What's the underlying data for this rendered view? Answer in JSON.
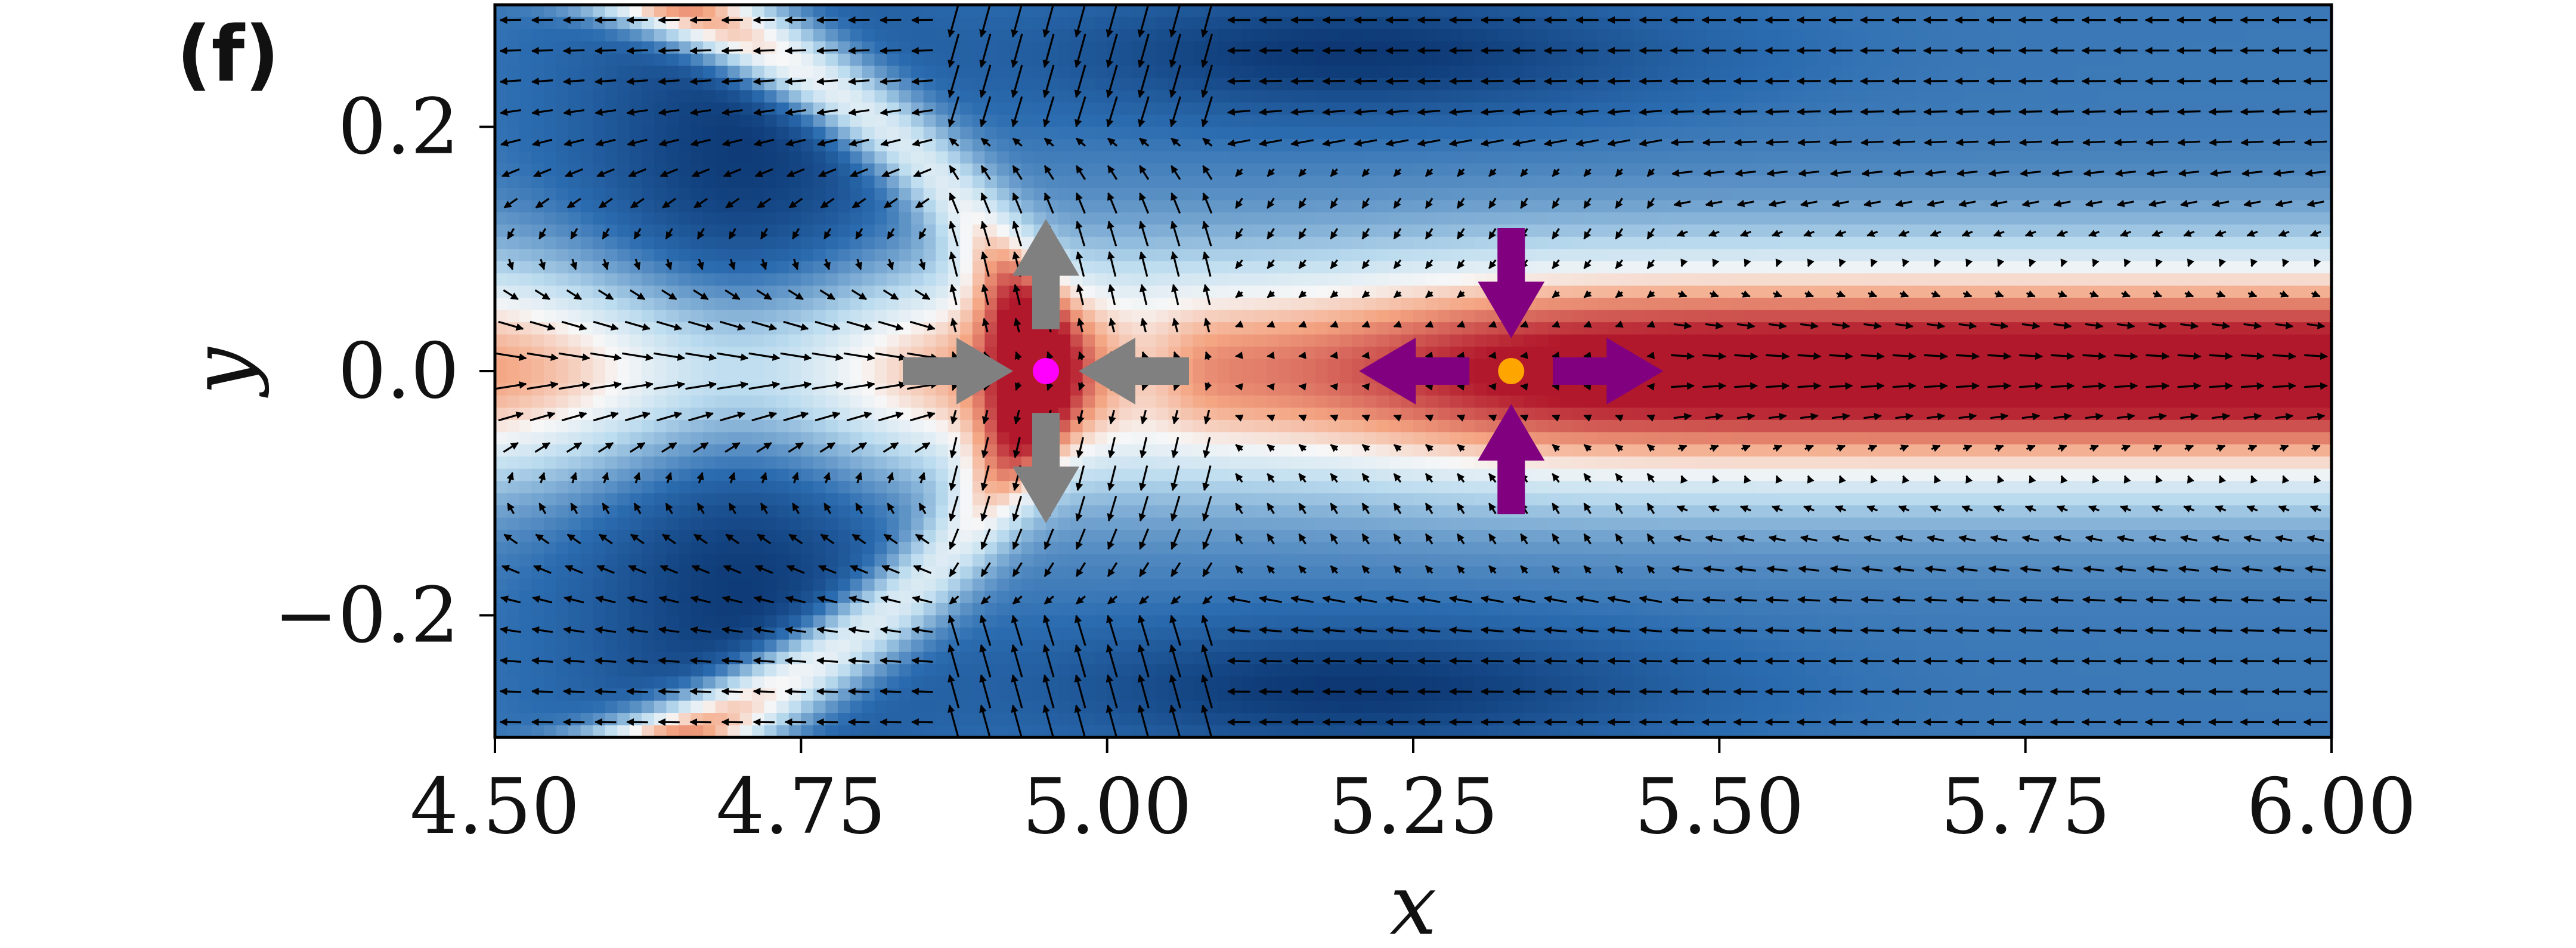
{
  "panel_label": "(f)",
  "chart_data": {
    "type": "heatmap",
    "subtype": "colormap with quiver (vector field) overlay",
    "title": "",
    "xlabel": "x",
    "ylabel": "y",
    "xlim": [
      4.5,
      6.0
    ],
    "ylim": [
      -0.3,
      0.3
    ],
    "x_ticks": [
      4.5,
      4.75,
      5.0,
      5.25,
      5.5,
      5.75,
      6.0
    ],
    "x_tick_labels": [
      "4.50",
      "4.75",
      "5.00",
      "5.25",
      "5.50",
      "5.75",
      "6.00"
    ],
    "y_ticks": [
      -0.2,
      0.0,
      0.2
    ],
    "y_tick_labels": [
      "−0.2",
      "0.0",
      "0.2"
    ],
    "grid": false,
    "colormap": "RdBu_r",
    "colors": {
      "deep_blue": "#08306b",
      "mid_blue": "#2b6cb0",
      "light_blue": "#bcdcef",
      "white": "#f7f7f7",
      "light_red": "#f4a582",
      "deep_red": "#b2182b",
      "quiver": "#000000",
      "stable_arrows": "#808080",
      "unstable_arrows": "#800080",
      "stable_point": "#ff00ff",
      "unstable_point": "#ffa500"
    },
    "critical_points": [
      {
        "x": 4.95,
        "y": 0.0,
        "color": "#ff00ff",
        "arrows_color": "#808080",
        "arrows_x_direction": "inward",
        "arrows_y_direction": "outward"
      },
      {
        "x": 5.33,
        "y": 0.0,
        "color": "#ffa500",
        "arrows_color": "#800080",
        "arrows_x_direction": "outward",
        "arrows_y_direction": "inward"
      }
    ],
    "quiver_grid": {
      "nx": 58,
      "ny": 24
    }
  }
}
